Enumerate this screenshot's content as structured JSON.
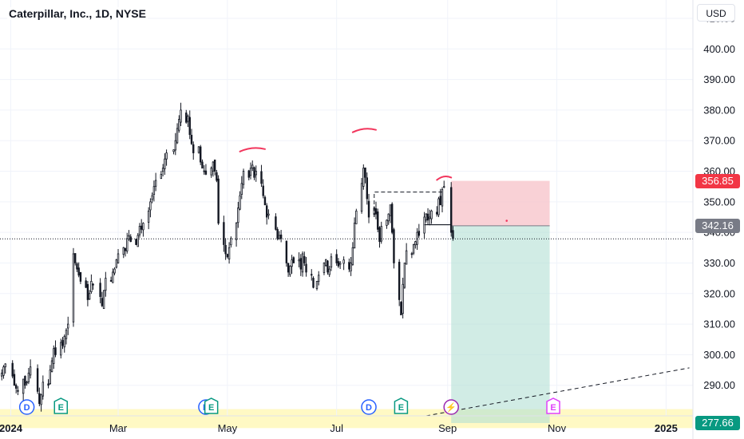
{
  "header": {
    "title": "Caterpillar, Inc., 1D, NYSE",
    "currency": "USD"
  },
  "colors": {
    "up": "#131722",
    "down": "#131722",
    "stop_zone": "#f7c5cc",
    "target_zone": "#b2dfd4",
    "stop_label": "#f23645",
    "entry_label": "#787b86",
    "target_label": "#089981",
    "highlight_band": "#fff9c4",
    "annotation": "#f2365d"
  },
  "chart_data": {
    "type": "candlestick",
    "title": "Caterpillar, Inc., 1D, NYSE",
    "x_range": [
      "2023-12-26",
      "2025-01-16"
    ],
    "y_range": [
      280,
      416
    ],
    "y_ticks": [
      290,
      300,
      310,
      320,
      330,
      340,
      350,
      360,
      370,
      380,
      390,
      400,
      410
    ],
    "x_ticks": [
      {
        "date": "2024-01-01",
        "label": "2024",
        "bold": true
      },
      {
        "date": "2024-03-01",
        "label": "Mar"
      },
      {
        "date": "2024-05-01",
        "label": "May"
      },
      {
        "date": "2024-07-01",
        "label": "Jul"
      },
      {
        "date": "2024-09-01",
        "label": "Sep"
      },
      {
        "date": "2024-11-01",
        "label": "Nov"
      },
      {
        "date": "2025-01-01",
        "label": "2025",
        "bold": true
      }
    ],
    "closes": [
      [
        "2023-12-27",
        294
      ],
      [
        "2023-12-28",
        296
      ],
      [
        "2023-12-29",
        297
      ],
      [
        "2024-01-02",
        293
      ],
      [
        "2024-01-03",
        290
      ],
      [
        "2024-01-04",
        289
      ],
      [
        "2024-01-05",
        288
      ],
      [
        "2024-01-08",
        292
      ],
      [
        "2024-01-09",
        290
      ],
      [
        "2024-01-10",
        291
      ],
      [
        "2024-01-11",
        294
      ],
      [
        "2024-01-12",
        296
      ],
      [
        "2024-01-16",
        288
      ],
      [
        "2024-01-17",
        284
      ],
      [
        "2024-01-18",
        287
      ],
      [
        "2024-01-19",
        291
      ],
      [
        "2024-01-22",
        290
      ],
      [
        "2024-01-23",
        295
      ],
      [
        "2024-01-24",
        298
      ],
      [
        "2024-01-25",
        302
      ],
      [
        "2024-01-26",
        300
      ],
      [
        "2024-01-29",
        304
      ],
      [
        "2024-01-30",
        303
      ],
      [
        "2024-01-31",
        306
      ],
      [
        "2024-02-01",
        308
      ],
      [
        "2024-02-02",
        310
      ],
      [
        "2024-02-05",
        333
      ],
      [
        "2024-02-06",
        330
      ],
      [
        "2024-02-07",
        328
      ],
      [
        "2024-02-08",
        326
      ],
      [
        "2024-02-09",
        324
      ],
      [
        "2024-02-12",
        322
      ],
      [
        "2024-02-13",
        318
      ],
      [
        "2024-02-14",
        320
      ],
      [
        "2024-02-15",
        324
      ],
      [
        "2024-02-16",
        323
      ],
      [
        "2024-02-20",
        319
      ],
      [
        "2024-02-21",
        316
      ],
      [
        "2024-02-22",
        321
      ],
      [
        "2024-02-23",
        325
      ],
      [
        "2024-02-26",
        324
      ],
      [
        "2024-02-27",
        327
      ],
      [
        "2024-02-28",
        328
      ],
      [
        "2024-02-29",
        331
      ],
      [
        "2024-03-01",
        333
      ],
      [
        "2024-03-04",
        335
      ],
      [
        "2024-03-05",
        334
      ],
      [
        "2024-03-06",
        338
      ],
      [
        "2024-03-07",
        339
      ],
      [
        "2024-03-08",
        337
      ],
      [
        "2024-03-11",
        336
      ],
      [
        "2024-03-12",
        339
      ],
      [
        "2024-03-13",
        342
      ],
      [
        "2024-03-14",
        341
      ],
      [
        "2024-03-15",
        343
      ],
      [
        "2024-03-18",
        347
      ],
      [
        "2024-03-19",
        350
      ],
      [
        "2024-03-20",
        352
      ],
      [
        "2024-03-21",
        355
      ],
      [
        "2024-03-22",
        357
      ],
      [
        "2024-03-25",
        359
      ],
      [
        "2024-03-26",
        361
      ],
      [
        "2024-03-27",
        364
      ],
      [
        "2024-03-28",
        366
      ],
      [
        "2024-04-01",
        367
      ],
      [
        "2024-04-02",
        370
      ],
      [
        "2024-04-03",
        374
      ],
      [
        "2024-04-04",
        377
      ],
      [
        "2024-04-05",
        380
      ],
      [
        "2024-04-08",
        376
      ],
      [
        "2024-04-09",
        378
      ],
      [
        "2024-04-10",
        372
      ],
      [
        "2024-04-11",
        369
      ],
      [
        "2024-04-12",
        366
      ],
      [
        "2024-04-15",
        368
      ],
      [
        "2024-04-16",
        363
      ],
      [
        "2024-04-17",
        361
      ],
      [
        "2024-04-18",
        360
      ],
      [
        "2024-04-19",
        359
      ],
      [
        "2024-04-22",
        361
      ],
      [
        "2024-04-23",
        363
      ],
      [
        "2024-04-24",
        360
      ],
      [
        "2024-04-25",
        357
      ],
      [
        "2024-04-26",
        343
      ],
      [
        "2024-04-29",
        336
      ],
      [
        "2024-04-30",
        333
      ],
      [
        "2024-05-01",
        332
      ],
      [
        "2024-05-02",
        335
      ],
      [
        "2024-05-03",
        338
      ],
      [
        "2024-05-06",
        343
      ],
      [
        "2024-05-07",
        348
      ],
      [
        "2024-05-08",
        352
      ],
      [
        "2024-05-09",
        356
      ],
      [
        "2024-05-10",
        360
      ],
      [
        "2024-05-13",
        358
      ],
      [
        "2024-05-14",
        361
      ],
      [
        "2024-05-15",
        362
      ],
      [
        "2024-05-16",
        358
      ],
      [
        "2024-05-17",
        360
      ],
      [
        "2024-05-20",
        356
      ],
      [
        "2024-05-21",
        352
      ],
      [
        "2024-05-22",
        349
      ],
      [
        "2024-05-23",
        345
      ],
      [
        "2024-05-24",
        346
      ],
      [
        "2024-05-28",
        341
      ],
      [
        "2024-05-29",
        338
      ],
      [
        "2024-05-30",
        339
      ],
      [
        "2024-05-31",
        338
      ],
      [
        "2024-06-03",
        330
      ],
      [
        "2024-06-04",
        327
      ],
      [
        "2024-06-05",
        329
      ],
      [
        "2024-06-06",
        331
      ],
      [
        "2024-06-07",
        330
      ],
      [
        "2024-06-10",
        331
      ],
      [
        "2024-06-11",
        328
      ],
      [
        "2024-06-12",
        333
      ],
      [
        "2024-06-13",
        330
      ],
      [
        "2024-06-14",
        327
      ],
      [
        "2024-06-17",
        326
      ],
      [
        "2024-06-18",
        322
      ],
      [
        "2024-06-20",
        324
      ],
      [
        "2024-06-21",
        326
      ],
      [
        "2024-06-24",
        330
      ],
      [
        "2024-06-25",
        331
      ],
      [
        "2024-06-26",
        327
      ],
      [
        "2024-06-27",
        328
      ],
      [
        "2024-06-28",
        332
      ],
      [
        "2024-07-01",
        330
      ],
      [
        "2024-07-02",
        329
      ],
      [
        "2024-07-03",
        330
      ],
      [
        "2024-07-05",
        331
      ],
      [
        "2024-07-08",
        328
      ],
      [
        "2024-07-09",
        330
      ],
      [
        "2024-07-10",
        335
      ],
      [
        "2024-07-11",
        343
      ],
      [
        "2024-07-12",
        347
      ],
      [
        "2024-07-15",
        356
      ],
      [
        "2024-07-16",
        361
      ],
      [
        "2024-07-17",
        358
      ],
      [
        "2024-07-18",
        351
      ],
      [
        "2024-07-19",
        345
      ],
      [
        "2024-07-22",
        348
      ],
      [
        "2024-07-23",
        346
      ],
      [
        "2024-07-24",
        341
      ],
      [
        "2024-07-25",
        337
      ],
      [
        "2024-07-26",
        342
      ],
      [
        "2024-07-29",
        344
      ],
      [
        "2024-07-30",
        346
      ],
      [
        "2024-07-31",
        349
      ],
      [
        "2024-08-01",
        340
      ],
      [
        "2024-08-02",
        330
      ],
      [
        "2024-08-05",
        318
      ],
      [
        "2024-08-06",
        313
      ],
      [
        "2024-08-07",
        323
      ],
      [
        "2024-08-08",
        330
      ],
      [
        "2024-08-09",
        334
      ],
      [
        "2024-08-12",
        333
      ],
      [
        "2024-08-13",
        336
      ],
      [
        "2024-08-14",
        337
      ],
      [
        "2024-08-15",
        340
      ],
      [
        "2024-08-16",
        339
      ],
      [
        "2024-08-19",
        345
      ],
      [
        "2024-08-20",
        346
      ],
      [
        "2024-08-21",
        344
      ],
      [
        "2024-08-22",
        345
      ],
      [
        "2024-08-23",
        347
      ],
      [
        "2024-08-26",
        346
      ],
      [
        "2024-08-27",
        351
      ],
      [
        "2024-08-28",
        349
      ],
      [
        "2024-08-29",
        354
      ],
      [
        "2024-08-30",
        355
      ],
      [
        "2024-09-03",
        340
      ],
      [
        "2024-09-04",
        338
      ]
    ],
    "position": {
      "type": "short",
      "entry": 342.16,
      "stop": 356.85,
      "target": 277.66,
      "start": "2024-09-03",
      "end": "2024-10-28"
    },
    "current_price_line": 337.9,
    "box_high": 353.2,
    "annotation_marks": [
      {
        "from": "2024-05-08",
        "to": "2024-05-22",
        "y": 367.5
      },
      {
        "from": "2024-07-10",
        "to": "2024-07-23",
        "y": 373.8
      },
      {
        "from": "2024-08-26",
        "to": "2024-09-03",
        "y": 358.2
      }
    ],
    "trend_line": {
      "from": [
        "2024-08-20",
        280
      ],
      "to": [
        "2025-01-14",
        295.7
      ]
    },
    "price_labels": {
      "stop": "356.85",
      "entry": "342.16",
      "target": "277.66"
    },
    "events": [
      {
        "date": "2024-01-10",
        "letter": "D",
        "kind": "dividend"
      },
      {
        "date": "2024-01-29",
        "letter": "E",
        "kind": "earnings"
      },
      {
        "date": "2024-04-19",
        "letter": "D",
        "kind": "dividend"
      },
      {
        "date": "2024-04-22",
        "letter": "E",
        "kind": "earnings"
      },
      {
        "date": "2024-07-19",
        "letter": "D",
        "kind": "dividend"
      },
      {
        "date": "2024-08-06",
        "letter": "E",
        "kind": "earnings"
      },
      {
        "date": "2024-09-03",
        "letter": "⚡",
        "kind": "split"
      },
      {
        "date": "2024-10-30",
        "letter": "E",
        "kind": "future-earnings"
      }
    ]
  }
}
